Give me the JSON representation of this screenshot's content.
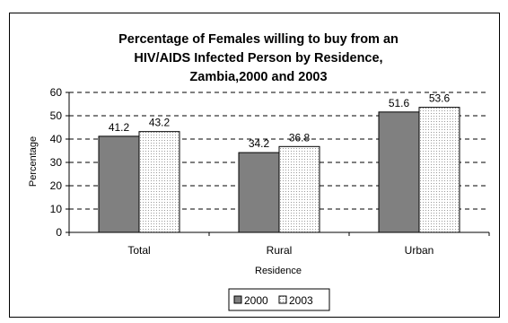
{
  "chart_data": {
    "type": "bar",
    "title_lines": [
      "Percentage of Females willing to buy from an",
      "HIV/AIDS Infected Person by Residence,",
      "Zambia,2000 and 2003"
    ],
    "xlabel": "Residence",
    "ylabel": "Percentage",
    "ylim": [
      0,
      60
    ],
    "yticks": [
      0,
      10,
      20,
      30,
      40,
      50,
      60
    ],
    "grid": true,
    "legend_position": "bottom",
    "categories": [
      "Total",
      "Rural",
      "Urban"
    ],
    "series": [
      {
        "name": "2000",
        "values": [
          41.2,
          34.2,
          51.6
        ],
        "labels": [
          "41.2",
          "34.2",
          "51.6"
        ],
        "color": "#808080",
        "pattern": "solid"
      },
      {
        "name": "2003",
        "values": [
          43.2,
          36.8,
          53.6
        ],
        "labels": [
          "43.2",
          "36.8",
          "53.6"
        ],
        "color": "#ffffff",
        "pattern": "dotted"
      }
    ]
  }
}
